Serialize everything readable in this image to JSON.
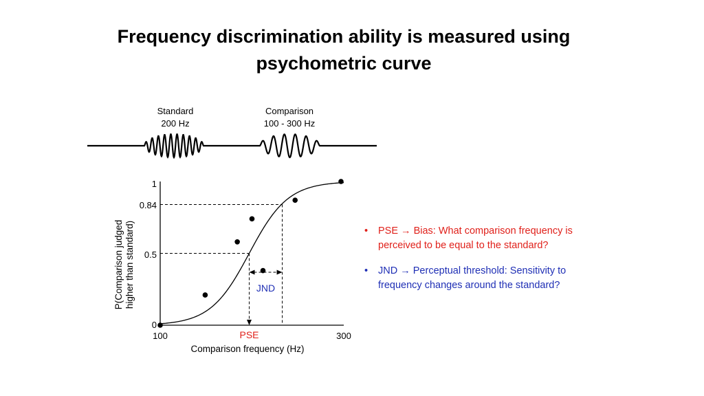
{
  "title": {
    "line1": "Frequency discrimination ability is measured using",
    "line2": "psychometric curve"
  },
  "stimulus": {
    "standard_label": "Standard",
    "standard_value": "200 Hz",
    "comparison_label": "Comparison",
    "comparison_value": "100 - 300 Hz"
  },
  "chart_data": {
    "type": "scatter",
    "xlabel": "Comparison frequency (Hz)",
    "ylabel_line1": "P(Comparison judged",
    "ylabel_line2": "higher than standard)",
    "xlim": [
      100,
      300
    ],
    "ylim": [
      0,
      1
    ],
    "x_ticks": [
      "100",
      "300"
    ],
    "y_ticks": [
      "0",
      "0.5",
      "0.84",
      "1"
    ],
    "points": [
      {
        "x": 100,
        "y": 0.0
      },
      {
        "x": 149,
        "y": 0.21
      },
      {
        "x": 184,
        "y": 0.58
      },
      {
        "x": 212,
        "y": 0.38
      },
      {
        "x": 247,
        "y": 0.87
      },
      {
        "x": 200,
        "y": 0.74
      },
      {
        "x": 297,
        "y": 1.0
      }
    ],
    "curve": {
      "type": "sigmoid",
      "mu": 197,
      "sigma": 36
    },
    "pse": {
      "x": 197,
      "y": 0.5,
      "label": "PSE",
      "color": "#e0201a"
    },
    "jnd": {
      "x_from": 197,
      "x_to": 233,
      "y_at": 0.84,
      "label": "JND",
      "color": "#1f2fb5"
    }
  },
  "bullets": [
    {
      "marker": "•",
      "line1": "PSE  → Bias: What comparison frequency is",
      "line2": "perceived to be equal to the standard?",
      "color": "#e0201a"
    },
    {
      "marker": "•",
      "line1": "JND  → Perceptual threshold: Sensitivity to",
      "line2": "frequency changes around the standard?",
      "color": "#1f2fb5"
    }
  ]
}
